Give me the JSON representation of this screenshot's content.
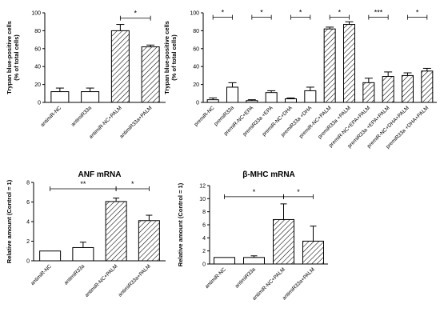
{
  "chart_data": [
    {
      "type": "bar",
      "title": "",
      "ylabel_lines": [
        "Trypan blue-positive cells",
        "(% of total cells)"
      ],
      "ylim": [
        0,
        100
      ],
      "yticks": [
        "0",
        "20",
        "40",
        "60",
        "80",
        "100"
      ],
      "categories": [
        "antimiR-NC",
        "antimiR33a",
        "antimiR-NC+PALM",
        "antimiR33a+PALM"
      ],
      "values": [
        12,
        12,
        80,
        62
      ],
      "errors": [
        4,
        4,
        7,
        2
      ],
      "hatched": [
        false,
        false,
        true,
        true
      ],
      "significance": [
        {
          "from": 2,
          "to": 3,
          "label": "*",
          "y": 94
        }
      ]
    },
    {
      "type": "bar",
      "title": "",
      "ylabel_lines": [
        "Trypan blue-positive cells",
        "(% of total cells)"
      ],
      "ylim": [
        0,
        100
      ],
      "yticks": [
        "0",
        "20",
        "40",
        "60",
        "80",
        "100"
      ],
      "categories": [
        "premiR-NC",
        "premiR33a",
        "premiR-NC+EPA",
        "premiR33a +EPA",
        "premiR-NC+DHA",
        "premiR33a +DHA",
        "premiR-NC+PALM",
        "premiR33a +PALM",
        "premiR-NC+EPA+PALM",
        "premiR33a +EPA+PALM",
        "premiR-NC+DHA+PALM",
        "premiR33a +DHA+PALM"
      ],
      "values": [
        3,
        17,
        2,
        11,
        4,
        13,
        82,
        87,
        22,
        29,
        30,
        35
      ],
      "errors": [
        2,
        5,
        1,
        2,
        1,
        4,
        2,
        3,
        5,
        5,
        3,
        3
      ],
      "hatched": [
        false,
        false,
        false,
        false,
        false,
        false,
        true,
        true,
        true,
        true,
        true,
        true
      ],
      "significance": [
        {
          "from": 0,
          "to": 1,
          "label": "*",
          "y": 95
        },
        {
          "from": 2,
          "to": 3,
          "label": "*",
          "y": 95
        },
        {
          "from": 4,
          "to": 5,
          "label": "*",
          "y": 95
        },
        {
          "from": 6,
          "to": 7,
          "label": "*",
          "y": 95
        },
        {
          "from": 8,
          "to": 9,
          "label": "***",
          "y": 95
        },
        {
          "from": 10,
          "to": 11,
          "label": "*",
          "y": 95
        }
      ]
    },
    {
      "type": "bar",
      "title": "ANF  mRNA",
      "ylabel_lines": [
        "Relative amount (Control = 1)"
      ],
      "ylim": [
        0,
        8
      ],
      "yticks": [
        "0",
        "2",
        "4",
        "6",
        "8"
      ],
      "categories": [
        "antimiR-NC",
        "antimiR33a",
        "antimiR-NC+PALM",
        "antimiR33a+PALM"
      ],
      "values": [
        1,
        1.35,
        6.05,
        4.1
      ],
      "errors": [
        0,
        0.55,
        0.35,
        0.55
      ],
      "hatched": [
        false,
        false,
        true,
        true
      ],
      "significance": [
        {
          "from": 0,
          "to": 2,
          "label": "**",
          "y": 7.35
        },
        {
          "from": 2,
          "to": 3,
          "label": "*",
          "y": 7.35
        }
      ]
    },
    {
      "type": "bar",
      "title": "β-MHC  mRNA",
      "ylabel_lines": [
        "Relative amount (Control = 1)"
      ],
      "ylim": [
        0,
        12
      ],
      "yticks": [
        "0",
        "2",
        "4",
        "6",
        "8",
        "10",
        "12"
      ],
      "categories": [
        "antimiR-NC",
        "antimiR33a",
        "antimiR-NC+PALM",
        "antimiR33a+PALM"
      ],
      "values": [
        1,
        1,
        6.8,
        3.5
      ],
      "errors": [
        0,
        0.25,
        2.4,
        2.3
      ],
      "hatched": [
        false,
        false,
        true,
        true
      ],
      "significance": [
        {
          "from": 0,
          "to": 2,
          "label": "*",
          "y": 10.3
        },
        {
          "from": 2,
          "to": 3,
          "label": "*",
          "y": 10.3
        }
      ]
    }
  ]
}
